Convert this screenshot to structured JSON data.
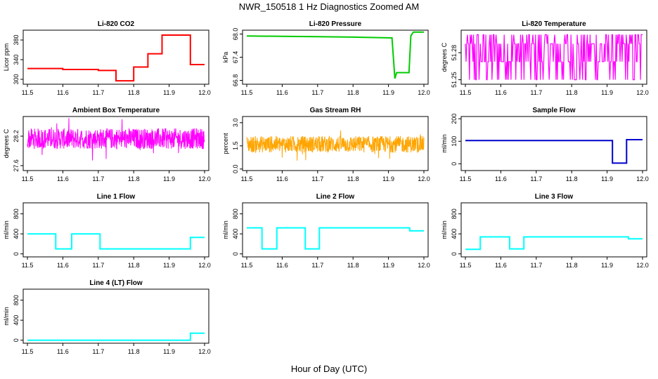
{
  "figure": {
    "title": "NWR_150518  1 Hz Diagnostics Zoomed AM",
    "xlabel": "Hour of Day (UTC)"
  },
  "chart_data": [
    {
      "id": "co2",
      "type": "line",
      "title": "Li-820 CO2",
      "ylabel": "Licor ppm",
      "color": "#ff0000",
      "xlim": [
        11.5,
        12.0
      ],
      "ylim": [
        290,
        400
      ],
      "xticks": [
        "11.5",
        "11.6",
        "11.7",
        "11.8",
        "11.9",
        "12.0"
      ],
      "yticks": [
        300,
        340,
        380
      ],
      "series": [
        {
          "x": [
            11.5,
            11.6,
            11.6,
            11.7,
            11.7,
            11.75,
            11.75,
            11.8,
            11.8,
            11.84,
            11.84,
            11.88,
            11.88,
            11.96,
            11.96,
            12.0
          ],
          "y": [
            322,
            322,
            320,
            320,
            318,
            318,
            297,
            297,
            325,
            325,
            352,
            352,
            390,
            390,
            330,
            330
          ]
        }
      ]
    },
    {
      "id": "pressure",
      "type": "line",
      "title": "Li-820 Pressure",
      "ylabel": "kPa",
      "color": "#00cc00",
      "xlim": [
        11.5,
        12.0
      ],
      "ylim": [
        66.7,
        68.1
      ],
      "xticks": [
        "11.5",
        "11.6",
        "11.7",
        "11.8",
        "11.9",
        "12.0"
      ],
      "yticks": [
        "66.8",
        "67.4",
        "68.0"
      ],
      "series": [
        {
          "x": [
            11.5,
            11.6,
            11.7,
            11.8,
            11.91,
            11.918,
            11.923,
            11.958,
            11.963,
            11.97,
            12.0
          ],
          "y": [
            67.95,
            67.94,
            67.93,
            67.92,
            67.9,
            66.85,
            67.0,
            67.0,
            67.95,
            68.05,
            68.05
          ]
        }
      ]
    },
    {
      "id": "li_temp",
      "type": "line",
      "title": "Li-820 Temperature",
      "ylabel": "degrees C",
      "color": "#ff00ff",
      "xlim": [
        11.5,
        12.0
      ],
      "ylim": [
        51.245,
        51.305
      ],
      "xticks": [
        "11.5",
        "11.6",
        "11.7",
        "11.8",
        "11.9",
        "12.0"
      ],
      "yticks": [
        "51.25",
        "51.28"
      ],
      "pattern": "toggle",
      "levels": [
        51.25,
        51.27,
        51.29,
        51.3
      ]
    },
    {
      "id": "box_temp",
      "type": "line",
      "title": "Ambient Box Temperature",
      "ylabel": "degrees C",
      "color": "#ff00ff",
      "xlim": [
        11.5,
        12.0
      ],
      "ylim": [
        27.5,
        28.6
      ],
      "xticks": [
        "11.5",
        "11.6",
        "11.7",
        "11.8",
        "11.9",
        "12.0"
      ],
      "yticks": [
        "27.6",
        "28.2"
      ],
      "pattern": "noise",
      "mean": 28.15,
      "amplitude": 0.35
    },
    {
      "id": "rh",
      "type": "line",
      "title": "Gas Stream RH",
      "ylabel": "percent",
      "color": "#ffa500",
      "xlim": [
        11.5,
        12.0
      ],
      "ylim": [
        -0.1,
        3.4
      ],
      "xticks": [
        "11.5",
        "11.6",
        "11.7",
        "11.8",
        "11.9",
        "12.0"
      ],
      "yticks": [
        "0.0",
        "1.5",
        "3.0"
      ],
      "pattern": "noise",
      "mean": 1.6,
      "amplitude": 0.9
    },
    {
      "id": "sample_flow",
      "type": "line",
      "title": "Sample Flow",
      "ylabel": "ml/min",
      "color": "#0000cc",
      "xlim": [
        11.5,
        12.0
      ],
      "ylim": [
        -30,
        210
      ],
      "xticks": [
        "11.5",
        "11.6",
        "11.7",
        "11.8",
        "11.9",
        "12.0"
      ],
      "yticks": [
        0,
        100,
        200
      ],
      "series": [
        {
          "x": [
            11.5,
            11.9,
            11.915,
            11.915,
            11.955,
            11.955,
            12.0
          ],
          "y": [
            103,
            103,
            103,
            3,
            3,
            107,
            107
          ]
        }
      ]
    },
    {
      "id": "line1",
      "type": "line",
      "title": "Line 1 Flow",
      "ylabel": "ml/min",
      "color": "#00ffff",
      "xlim": [
        11.5,
        12.0
      ],
      "ylim": [
        -60,
        1020
      ],
      "xticks": [
        "11.5",
        "11.6",
        "11.7",
        "11.8",
        "11.9",
        "12.0"
      ],
      "yticks": [
        0,
        400,
        800
      ],
      "series": [
        {
          "x": [
            11.5,
            11.58,
            11.58,
            11.625,
            11.625,
            11.705,
            11.705,
            11.96,
            11.96,
            12.0
          ],
          "y": [
            400,
            400,
            100,
            100,
            400,
            400,
            100,
            100,
            330,
            330
          ]
        }
      ]
    },
    {
      "id": "line2",
      "type": "line",
      "title": "Line 2 Flow",
      "ylabel": "ml/min",
      "color": "#00ffff",
      "xlim": [
        11.5,
        12.0
      ],
      "ylim": [
        -60,
        1020
      ],
      "xticks": [
        "11.5",
        "11.6",
        "11.7",
        "11.8",
        "11.9",
        "12.0"
      ],
      "yticks": [
        0,
        400,
        800
      ],
      "series": [
        {
          "x": [
            11.5,
            11.543,
            11.543,
            11.585,
            11.585,
            11.665,
            11.665,
            11.705,
            11.705,
            11.96,
            11.96,
            12.0
          ],
          "y": [
            520,
            520,
            100,
            100,
            520,
            520,
            100,
            100,
            520,
            520,
            460,
            460
          ]
        }
      ]
    },
    {
      "id": "line3",
      "type": "line",
      "title": "Line 3 Flow",
      "ylabel": "ml/min",
      "color": "#00ffff",
      "xlim": [
        11.5,
        12.0
      ],
      "ylim": [
        -60,
        1020
      ],
      "xticks": [
        "11.5",
        "11.6",
        "11.7",
        "11.8",
        "11.9",
        "12.0"
      ],
      "yticks": [
        0,
        400,
        800
      ],
      "series": [
        {
          "x": [
            11.5,
            11.542,
            11.542,
            11.625,
            11.625,
            11.665,
            11.665,
            11.96,
            11.96,
            12.0
          ],
          "y": [
            90,
            90,
            340,
            340,
            100,
            100,
            340,
            340,
            300,
            300
          ]
        }
      ]
    },
    {
      "id": "line4",
      "type": "line",
      "title": "Line 4 (LT) Flow",
      "ylabel": "ml/min",
      "color": "#00ffff",
      "xlim": [
        11.5,
        12.0
      ],
      "ylim": [
        -60,
        1020
      ],
      "xticks": [
        "11.5",
        "11.6",
        "11.7",
        "11.8",
        "11.9",
        "12.0"
      ],
      "yticks": [
        0,
        400,
        800
      ],
      "series": [
        {
          "x": [
            11.5,
            11.96,
            11.96,
            12.0
          ],
          "y": [
            0,
            0,
            140,
            140
          ]
        }
      ]
    }
  ]
}
